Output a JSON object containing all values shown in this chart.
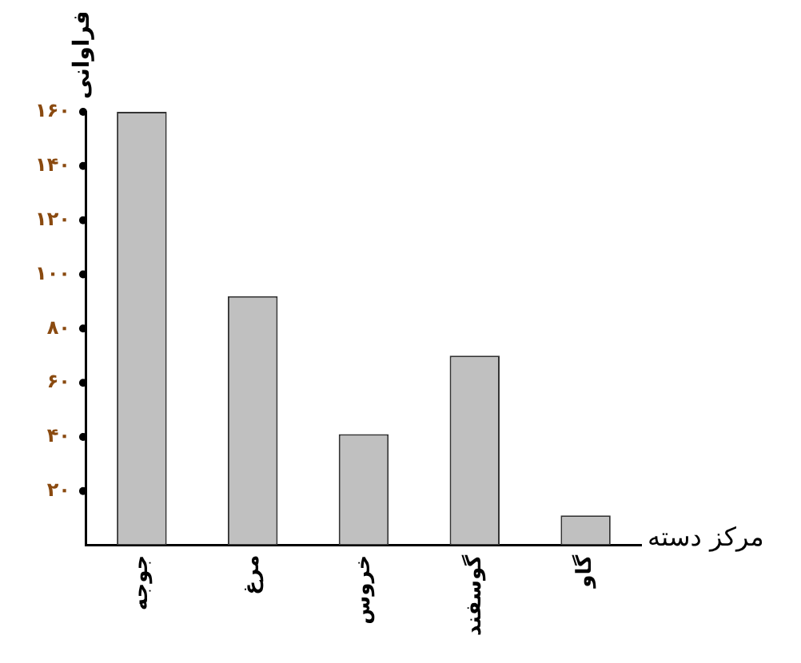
{
  "chart_data": {
    "type": "bar",
    "xlabel": "مرکز دسته",
    "ylabel": "فراوانی",
    "categories": [
      "جوجه",
      "مرغ",
      "خروس",
      "گوسفند",
      "گاو"
    ],
    "values": [
      160,
      92,
      41,
      70,
      11
    ],
    "color": "#c0c0c0",
    "ylim": [
      0,
      160
    ],
    "yticks": [
      {
        "value": 20,
        "label": "۲۰"
      },
      {
        "value": 40,
        "label": "۴۰"
      },
      {
        "value": 60,
        "label": "۶۰"
      },
      {
        "value": 80,
        "label": "۸۰"
      },
      {
        "value": 100,
        "label": "۱۰۰"
      },
      {
        "value": 120,
        "label": "۱۲۰"
      },
      {
        "value": 140,
        "label": "۱۴۰"
      },
      {
        "value": 160,
        "label": "۱۶۰"
      }
    ],
    "grid": false,
    "legend": false
  }
}
